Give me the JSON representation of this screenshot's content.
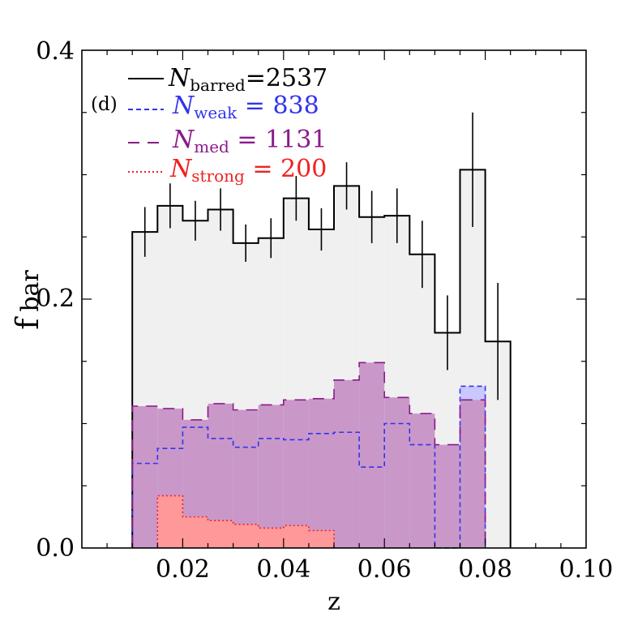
{
  "chart_data": {
    "type": "bar",
    "panel_label": "(d)",
    "xlabel": "z",
    "ylabel": "f",
    "ylabel_subscript": "bar",
    "xlim": [
      0.0,
      0.1
    ],
    "ylim": [
      0.0,
      0.4
    ],
    "xticks": [
      "0.02",
      "0.04",
      "0.06",
      "0.08",
      "0.10"
    ],
    "yticks": [
      "0.0",
      "0.2",
      "0.4"
    ],
    "series": [
      {
        "name": "barred",
        "legend_N": "N",
        "legend_sub": "barred",
        "legend_value": "=2537",
        "color": "#000000",
        "fill": "#f0f0f0",
        "style": "solid",
        "edges": [
          0.01,
          0.015,
          0.02,
          0.025,
          0.03,
          0.035,
          0.04,
          0.045,
          0.05,
          0.055,
          0.06,
          0.065,
          0.07,
          0.075,
          0.08,
          0.085
        ],
        "values": [
          0.254,
          0.275,
          0.263,
          0.272,
          0.245,
          0.249,
          0.281,
          0.256,
          0.291,
          0.266,
          0.267,
          0.236,
          0.173,
          0.304,
          0.166
        ],
        "errors": [
          0.02,
          0.018,
          0.016,
          0.017,
          0.015,
          0.016,
          0.018,
          0.017,
          0.019,
          0.021,
          0.022,
          0.027,
          0.03,
          0.046,
          0.047
        ]
      },
      {
        "name": "weak",
        "legend_N": "N",
        "legend_sub": "weak",
        "legend_value": " = 838",
        "color": "#3333ee",
        "fill": "#c8c8ff",
        "style": "dashed",
        "edges": [
          0.01,
          0.015,
          0.02,
          0.025,
          0.03,
          0.035,
          0.04,
          0.045,
          0.05,
          0.055,
          0.06,
          0.065,
          0.07,
          0.075,
          0.08
        ],
        "values": [
          0.068,
          0.08,
          0.097,
          0.088,
          0.081,
          0.088,
          0.087,
          0.092,
          0.093,
          0.065,
          0.1,
          0.083,
          0.0,
          0.13
        ]
      },
      {
        "name": "med",
        "legend_N": "N",
        "legend_sub": "med",
        "legend_value": " = 1131",
        "color": "#8b1a8b",
        "fill": "#c998c9",
        "style": "longdash",
        "edges": [
          0.01,
          0.015,
          0.02,
          0.025,
          0.03,
          0.035,
          0.04,
          0.045,
          0.05,
          0.055,
          0.06,
          0.065,
          0.07,
          0.075,
          0.08
        ],
        "values": [
          0.114,
          0.112,
          0.103,
          0.116,
          0.111,
          0.115,
          0.119,
          0.12,
          0.135,
          0.149,
          0.121,
          0.108,
          0.083,
          0.119
        ]
      },
      {
        "name": "strong",
        "legend_N": "N",
        "legend_sub": "strong",
        "legend_value": " = 200",
        "color": "#ee2222",
        "fill": "#ff9898",
        "style": "dotted",
        "edges": [
          0.015,
          0.02,
          0.025,
          0.03,
          0.035,
          0.04,
          0.045,
          0.05
        ],
        "values": [
          0.042,
          0.025,
          0.022,
          0.019,
          0.016,
          0.018,
          0.014
        ]
      }
    ]
  }
}
